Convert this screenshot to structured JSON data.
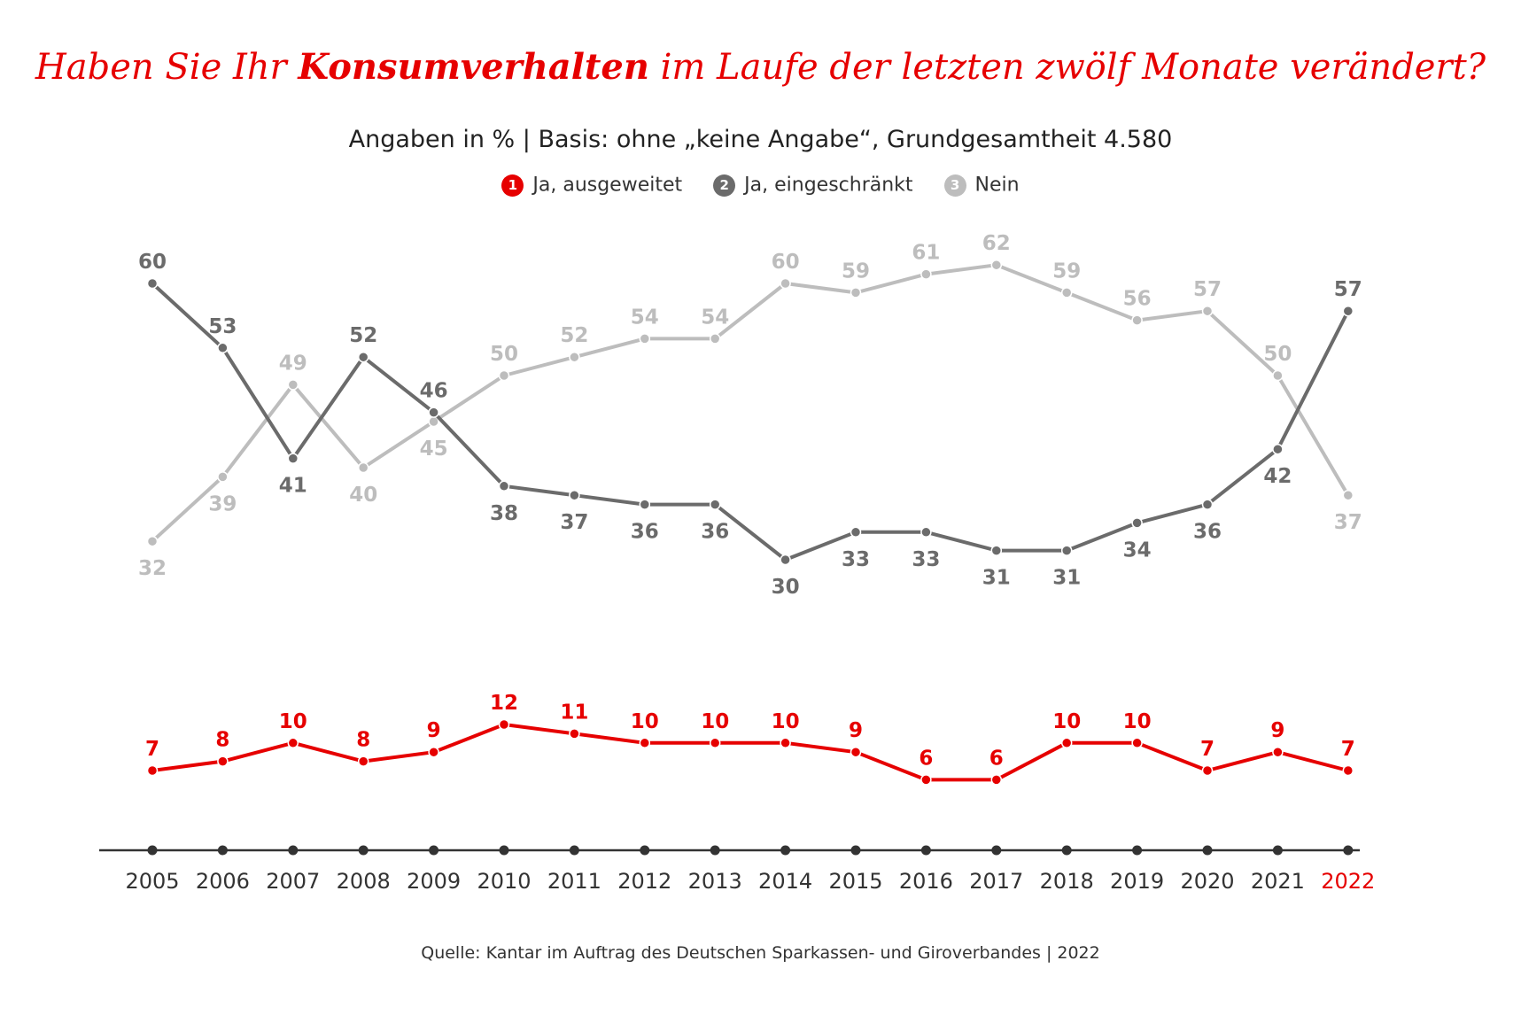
{
  "title": {
    "pre": "Haben Sie Ihr ",
    "bold": "Konsumverhalten",
    "post": " im Laufe der letzten zwölf Monate verändert?"
  },
  "subtitle": "Angaben in % | Basis: ohne „keine Angabe“, Grundgesamtheit 4.580",
  "legend": [
    {
      "num": "1",
      "label": "Ja, ausgeweitet",
      "color": "#e60000"
    },
    {
      "num": "2",
      "label": "Ja, eingeschränkt",
      "color": "#6b6b6b"
    },
    {
      "num": "3",
      "label": "Nein",
      "color": "#bdbdbd"
    }
  ],
  "source": "Quelle: Kantar im Auftrag des Deutschen Sparkassen- und Giroverbandes | 2022",
  "colors": {
    "title": "#e60000",
    "highlight_year": "#e60000",
    "axis": "#333333"
  },
  "chart_data": {
    "type": "line",
    "title": "Haben Sie Ihr Konsumverhalten im Laufe der letzten zwölf Monate verändert?",
    "subtitle": "Angaben in % | Basis: ohne „keine Angabe“, Grundgesamtheit 4.580",
    "xlabel": "",
    "ylabel": "",
    "x": [
      "2005",
      "2006",
      "2007",
      "2008",
      "2009",
      "2010",
      "2011",
      "2012",
      "2013",
      "2014",
      "2015",
      "2016",
      "2017",
      "2018",
      "2019",
      "2020",
      "2021",
      "2022"
    ],
    "highlight_x": "2022",
    "series": [
      {
        "name": "Ja, eingeschränkt",
        "key": "eingeschraenkt",
        "color": "#6b6b6b",
        "values": [
          60,
          53,
          41,
          52,
          46,
          38,
          37,
          36,
          36,
          30,
          33,
          33,
          31,
          31,
          34,
          36,
          42,
          57
        ]
      },
      {
        "name": "Nein",
        "key": "nein",
        "color": "#bdbdbd",
        "values": [
          32,
          39,
          49,
          40,
          45,
          50,
          52,
          54,
          54,
          60,
          59,
          61,
          62,
          59,
          56,
          57,
          50,
          37
        ]
      },
      {
        "name": "Ja, ausgeweitet",
        "key": "ausgeweitet",
        "color": "#e60000",
        "values": [
          7,
          8,
          10,
          8,
          9,
          12,
          11,
          10,
          10,
          10,
          9,
          6,
          6,
          10,
          10,
          7,
          9,
          7
        ]
      }
    ],
    "legend_position": "top-center",
    "grid": false
  }
}
